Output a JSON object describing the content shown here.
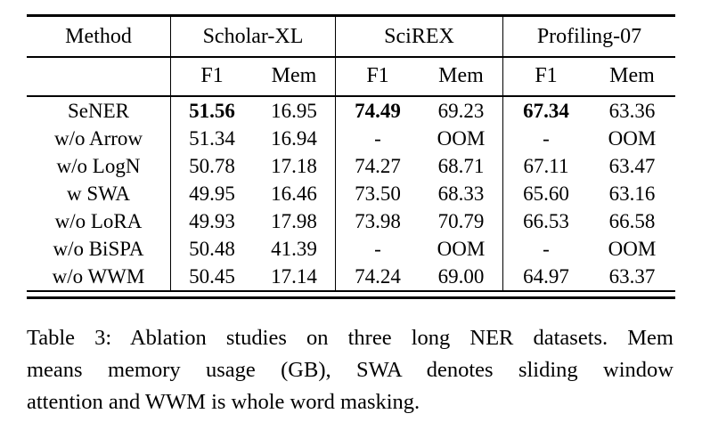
{
  "table": {
    "method_header": "Method",
    "groups": [
      "Scholar-XL",
      "SciREX",
      "Profiling-07"
    ],
    "sub_f1": "F1",
    "sub_mem": "Mem",
    "rows": [
      {
        "method": "SeNER",
        "values": [
          "51.56",
          "16.95",
          "74.49",
          "69.23",
          "67.34",
          "63.36"
        ]
      },
      {
        "method": "w/o Arrow",
        "values": [
          "51.34",
          "16.94",
          "-",
          "OOM",
          "-",
          "OOM"
        ]
      },
      {
        "method": "w/o LogN",
        "values": [
          "50.78",
          "17.18",
          "74.27",
          "68.71",
          "67.11",
          "63.47"
        ]
      },
      {
        "method": "w SWA",
        "values": [
          "49.95",
          "16.46",
          "73.50",
          "68.33",
          "65.60",
          "63.16"
        ]
      },
      {
        "method": "w/o LoRA",
        "values": [
          "49.93",
          "17.98",
          "73.98",
          "70.79",
          "66.53",
          "66.58"
        ]
      },
      {
        "method": "w/o BiSPA",
        "values": [
          "50.48",
          "41.39",
          "-",
          "OOM",
          "-",
          "OOM"
        ]
      },
      {
        "method": "w/o WWM",
        "values": [
          "50.45",
          "17.14",
          "74.24",
          "69.00",
          "64.97",
          "63.37"
        ]
      }
    ]
  },
  "caption": {
    "lines": [
      "Table 3:  Ablation studies on three long NER datasets. Mem",
      "means memory usage (GB), SWA denotes sliding window",
      "attention and WWM is whole word masking."
    ]
  }
}
